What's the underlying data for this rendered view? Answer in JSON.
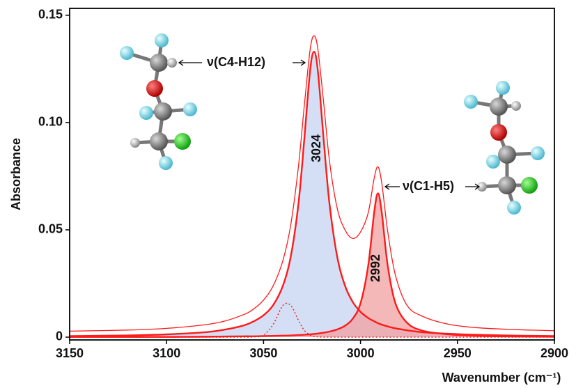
{
  "chart_data": {
    "type": "line",
    "x_label": "Wavenumber (cm⁻¹)",
    "y_label": "Absorbance",
    "xlim": [
      3150,
      2900
    ],
    "ylim": [
      -0.0013,
      0.1532
    ],
    "xticks": [
      3150,
      3100,
      3050,
      3000,
      2950,
      2900
    ],
    "yticks": [
      0,
      0.05,
      {
        "value": 0.1,
        "label": "0.10"
      },
      0.15
    ],
    "x": [
      3150,
      3120,
      3100,
      3080,
      3070,
      3060,
      3055,
      3050,
      3045,
      3040,
      3036,
      3032,
      3029,
      3026,
      3024,
      3022,
      3019,
      3016,
      3012,
      3008,
      3004,
      3000,
      2996,
      2993,
      2991,
      2989,
      2986,
      2982,
      2976,
      2968,
      2955,
      2940,
      2920,
      2900
    ],
    "series": [
      {
        "color": "#ff1a1a",
        "fill": "#c6d4f2",
        "line_width": 2.4,
        "values": [
          0.0005,
          0.0008,
          0.0013,
          0.0023,
          0.0035,
          0.0055,
          0.0074,
          0.0102,
          0.015,
          0.024,
          0.0374,
          0.0622,
          0.0921,
          0.1242,
          0.133,
          0.1242,
          0.0921,
          0.0622,
          0.0374,
          0.024,
          0.0164,
          0.0118,
          0.0089,
          0.0074,
          0.0065,
          0.0058,
          0.005,
          0.0041,
          0.0032,
          0.0023,
          0.0016,
          0.0011,
          0.0007,
          0.0005
        ]
      },
      {
        "color": "#ff1a1a",
        "fill": "#f2a0a0",
        "line_width": 2.4,
        "values": [
          0.0001,
          0.0001,
          0.0001,
          0.0002,
          0.0003,
          0.0004,
          0.0004,
          0.0005,
          0.0006,
          0.0007,
          0.0008,
          0.001,
          0.0011,
          0.0013,
          0.0015,
          0.0017,
          0.0021,
          0.0026,
          0.0036,
          0.0053,
          0.0086,
          0.0158,
          0.0335,
          0.0578,
          0.067,
          0.0578,
          0.0335,
          0.0158,
          0.0067,
          0.003,
          0.0013,
          0.0006,
          0.0003,
          0.0002
        ]
      },
      {
        "color": "#ff1a1a",
        "dashed": true,
        "line_width": 1.5,
        "values": [
          0,
          0,
          0,
          0,
          0,
          0,
          0.0001,
          0.0009,
          0.006,
          0.0148,
          0.0148,
          0.0078,
          0.0032,
          0.0009,
          0.0003,
          0.0001,
          0,
          0,
          0,
          0,
          0,
          0,
          0,
          0,
          0,
          0,
          0,
          0,
          0,
          0,
          0,
          0,
          0,
          0
        ]
      },
      {
        "color": "#ff1a1a",
        "line_width": 1.3,
        "values": [
          0.0028,
          0.0033,
          0.0041,
          0.0058,
          0.0075,
          0.0106,
          0.0132,
          0.0173,
          0.024,
          0.0358,
          0.0522,
          0.0796,
          0.1077,
          0.1338,
          0.1404,
          0.1343,
          0.1092,
          0.0821,
          0.06,
          0.05,
          0.046,
          0.049,
          0.058,
          0.0738,
          0.0794,
          0.0716,
          0.0494,
          0.0289,
          0.0148,
          0.0097,
          0.0061,
          0.0044,
          0.0035,
          0.003
        ]
      }
    ],
    "annotations": [
      "ν(C4-H12)",
      "ν(C1-H5)",
      "3024",
      "2992"
    ]
  }
}
